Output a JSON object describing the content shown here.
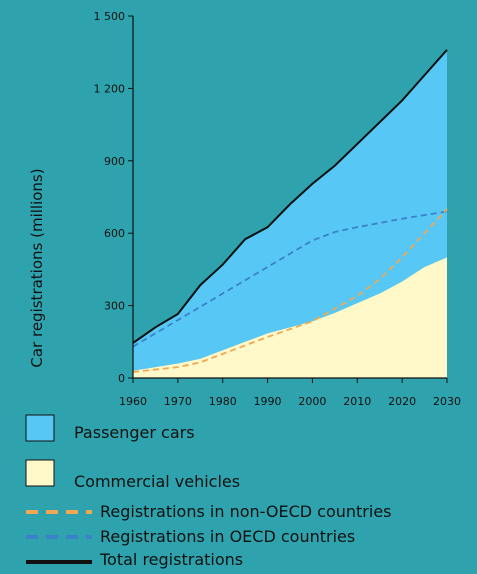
{
  "chart_data": {
    "type": "area",
    "title": "",
    "xlabel": "",
    "ylabel": "Car registrations (millions)",
    "xlim": [
      1960,
      2030
    ],
    "ylim": [
      0,
      1500
    ],
    "x_ticks": [
      1960,
      1970,
      1980,
      1990,
      2000,
      2010,
      2020,
      2030
    ],
    "y_ticks": [
      0,
      300,
      600,
      900,
      1200,
      1500
    ],
    "y_tick_labels": [
      "0",
      "300",
      "600",
      "900",
      "1 200",
      "1 500"
    ],
    "grid": false,
    "legend_placement": "bottom",
    "colors": {
      "background": "#2fa3ad",
      "passenger": "#57c8f5",
      "commercial": "#fff8c9",
      "non_oecd": "#f0a852",
      "oecd": "#3b82c8",
      "total": "#111111"
    },
    "series": [
      {
        "name": "Commercial vehicles",
        "kind": "area",
        "x": [
          1960,
          1965,
          1970,
          1975,
          1980,
          1985,
          1990,
          1995,
          2000,
          2005,
          2010,
          2015,
          2020,
          2025,
          2030
        ],
        "values": [
          30,
          45,
          60,
          80,
          115,
          150,
          185,
          210,
          235,
          270,
          310,
          350,
          400,
          460,
          500
        ]
      },
      {
        "name": "Passenger cars",
        "kind": "area",
        "x": [
          1960,
          1965,
          1970,
          1975,
          1980,
          1985,
          1990,
          1995,
          2000,
          2005,
          2010,
          2015,
          2020,
          2025,
          2030
        ],
        "values": [
          115,
          165,
          205,
          305,
          355,
          425,
          440,
          510,
          570,
          610,
          660,
          710,
          750,
          795,
          860
        ]
      },
      {
        "name": "Total registrations",
        "kind": "line",
        "x": [
          1960,
          1965,
          1970,
          1975,
          1980,
          1985,
          1990,
          1995,
          2000,
          2005,
          2010,
          2015,
          2020,
          2025,
          2030
        ],
        "values": [
          145,
          210,
          265,
          385,
          470,
          575,
          625,
          720,
          805,
          880,
          970,
          1060,
          1150,
          1255,
          1360
        ]
      },
      {
        "name": "Registrations in OECD countries",
        "kind": "dashed",
        "x": [
          1960,
          1970,
          1980,
          1990,
          2000,
          2005,
          2010,
          2020,
          2030
        ],
        "values": [
          130,
          240,
          350,
          460,
          570,
          605,
          625,
          660,
          690
        ]
      },
      {
        "name": "Registrations in non-OECD countries",
        "kind": "dashed",
        "x": [
          1960,
          1970,
          1975,
          1980,
          1990,
          2000,
          2010,
          2015,
          2020,
          2025,
          2030
        ],
        "values": [
          25,
          45,
          65,
          100,
          170,
          235,
          340,
          410,
          500,
          600,
          700
        ]
      }
    ],
    "legend": [
      {
        "label": "Passenger cars",
        "swatch": "box",
        "color": "#57c8f5"
      },
      {
        "label": "Commercial vehicles",
        "swatch": "box",
        "color": "#fff8c9"
      },
      {
        "label": "Registrations in non-OECD countries",
        "swatch": "dash",
        "color": "#f0a852"
      },
      {
        "label": "Registrations in OECD countries",
        "swatch": "dash",
        "color": "#3b82c8"
      },
      {
        "label": "Total registrations",
        "swatch": "line",
        "color": "#111111"
      }
    ]
  }
}
